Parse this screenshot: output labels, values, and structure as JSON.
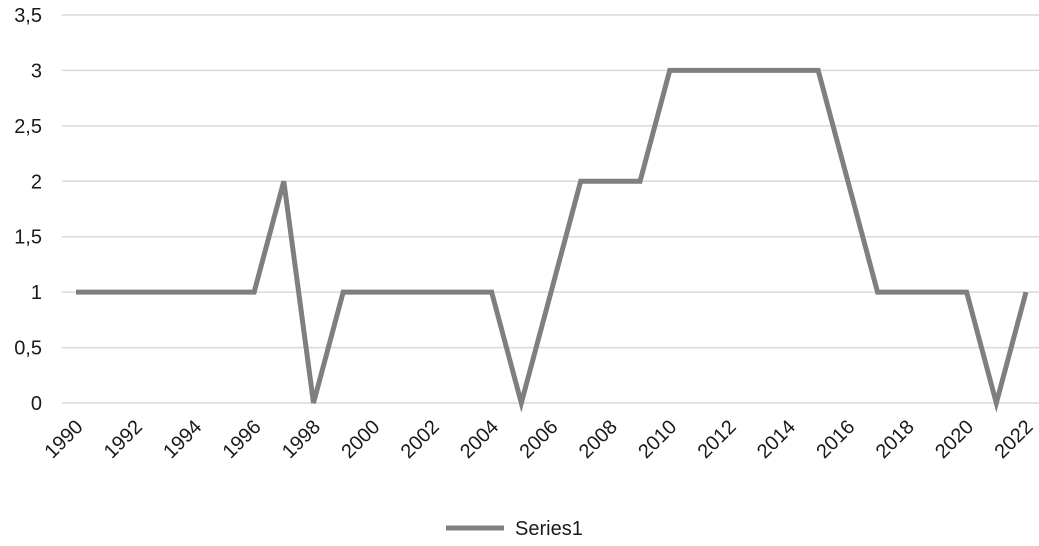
{
  "chart_data": {
    "type": "line",
    "title": "",
    "xlabel": "",
    "ylabel": "",
    "x": [
      1990,
      1991,
      1992,
      1993,
      1994,
      1995,
      1996,
      1997,
      1998,
      1999,
      2000,
      2001,
      2002,
      2003,
      2004,
      2005,
      2006,
      2007,
      2008,
      2009,
      2010,
      2011,
      2012,
      2013,
      2014,
      2015,
      2016,
      2017,
      2018,
      2019,
      2020,
      2021,
      2022
    ],
    "x_tick_labels": [
      "1990",
      "1992",
      "1994",
      "1996",
      "1998",
      "2000",
      "2002",
      "2004",
      "2006",
      "2008",
      "2010",
      "2012",
      "2014",
      "2016",
      "2018",
      "2020",
      "2022"
    ],
    "y_tick_labels": [
      "0",
      "0,5",
      "1",
      "1,5",
      "2",
      "2,5",
      "3",
      "3,5"
    ],
    "ylim": [
      0,
      3.5
    ],
    "grid": true,
    "legend_position": "bottom",
    "series": [
      {
        "name": "Series1",
        "color": "#7f7f7f",
        "values": [
          1,
          1,
          1,
          1,
          1,
          1,
          1,
          2,
          0,
          1,
          1,
          1,
          1,
          1,
          1,
          0,
          1,
          2,
          2,
          2,
          3,
          3,
          3,
          3,
          3,
          3,
          2,
          1,
          1,
          1,
          1,
          0,
          1
        ]
      }
    ]
  }
}
